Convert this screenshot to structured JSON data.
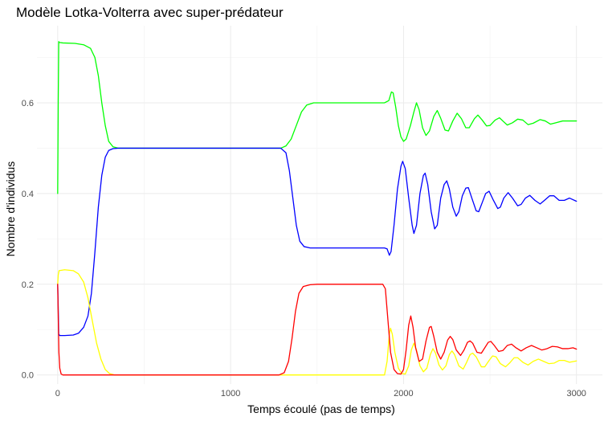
{
  "chart_data": {
    "type": "line",
    "title": "Modèle Lotka-Volterra avec super-prédateur",
    "xlabel": "Temps écoulé (pas de temps)",
    "ylabel": "Nombre d'individus",
    "xlim": [
      -120,
      3150
    ],
    "ylim": [
      -0.02,
      0.77
    ],
    "grid": true,
    "legend": "none",
    "x_ticks": [
      0,
      1000,
      2000,
      3000
    ],
    "x_tick_labels": [
      "0",
      "1000",
      "2000",
      "3000"
    ],
    "x_minor_ticks": [
      500,
      1500,
      2500
    ],
    "y_ticks": [
      0.0,
      0.2,
      0.4,
      0.6
    ],
    "y_tick_labels": [
      "0.0",
      "0.2",
      "0.4",
      "0.6"
    ],
    "y_minor_ticks": [
      0.1,
      0.3,
      0.5,
      0.7
    ],
    "series": [
      {
        "color": "#00ff00",
        "points": [
          [
            0,
            0.4
          ],
          [
            3,
            0.6
          ],
          [
            6,
            0.735
          ],
          [
            10,
            0.733
          ],
          [
            30,
            0.732
          ],
          [
            100,
            0.731
          ],
          [
            150,
            0.728
          ],
          [
            190,
            0.72
          ],
          [
            215,
            0.7
          ],
          [
            235,
            0.66
          ],
          [
            255,
            0.6
          ],
          [
            275,
            0.55
          ],
          [
            295,
            0.515
          ],
          [
            320,
            0.503
          ],
          [
            350,
            0.5
          ],
          [
            500,
            0.5
          ],
          [
            1000,
            0.5
          ],
          [
            1290,
            0.5
          ],
          [
            1320,
            0.505
          ],
          [
            1350,
            0.52
          ],
          [
            1380,
            0.55
          ],
          [
            1410,
            0.58
          ],
          [
            1440,
            0.595
          ],
          [
            1480,
            0.6
          ],
          [
            1600,
            0.6
          ],
          [
            1890,
            0.6
          ],
          [
            1915,
            0.605
          ],
          [
            1930,
            0.624
          ],
          [
            1940,
            0.622
          ],
          [
            1955,
            0.59
          ],
          [
            1970,
            0.55
          ],
          [
            1985,
            0.525
          ],
          [
            2000,
            0.515
          ],
          [
            2015,
            0.52
          ],
          [
            2040,
            0.55
          ],
          [
            2060,
            0.58
          ],
          [
            2075,
            0.6
          ],
          [
            2090,
            0.585
          ],
          [
            2110,
            0.545
          ],
          [
            2130,
            0.528
          ],
          [
            2150,
            0.538
          ],
          [
            2175,
            0.57
          ],
          [
            2195,
            0.583
          ],
          [
            2215,
            0.566
          ],
          [
            2240,
            0.54
          ],
          [
            2260,
            0.538
          ],
          [
            2285,
            0.56
          ],
          [
            2310,
            0.577
          ],
          [
            2335,
            0.565
          ],
          [
            2360,
            0.545
          ],
          [
            2380,
            0.545
          ],
          [
            2410,
            0.565
          ],
          [
            2430,
            0.573
          ],
          [
            2455,
            0.562
          ],
          [
            2480,
            0.549
          ],
          [
            2500,
            0.55
          ],
          [
            2530,
            0.562
          ],
          [
            2555,
            0.567
          ],
          [
            2580,
            0.558
          ],
          [
            2600,
            0.551
          ],
          [
            2630,
            0.556
          ],
          [
            2660,
            0.564
          ],
          [
            2690,
            0.562
          ],
          [
            2720,
            0.552
          ],
          [
            2750,
            0.555
          ],
          [
            2790,
            0.563
          ],
          [
            2820,
            0.56
          ],
          [
            2850,
            0.553
          ],
          [
            2880,
            0.556
          ],
          [
            2920,
            0.56
          ],
          [
            2960,
            0.56
          ],
          [
            3000,
            0.56
          ]
        ]
      },
      {
        "color": "#0000ff",
        "points": [
          [
            0,
            0.2
          ],
          [
            3,
            0.15
          ],
          [
            6,
            0.09
          ],
          [
            12,
            0.087
          ],
          [
            40,
            0.087
          ],
          [
            90,
            0.088
          ],
          [
            120,
            0.092
          ],
          [
            150,
            0.105
          ],
          [
            175,
            0.13
          ],
          [
            195,
            0.18
          ],
          [
            215,
            0.27
          ],
          [
            235,
            0.37
          ],
          [
            255,
            0.44
          ],
          [
            275,
            0.48
          ],
          [
            295,
            0.495
          ],
          [
            320,
            0.499
          ],
          [
            350,
            0.5
          ],
          [
            500,
            0.5
          ],
          [
            1000,
            0.5
          ],
          [
            1290,
            0.5
          ],
          [
            1320,
            0.49
          ],
          [
            1340,
            0.45
          ],
          [
            1360,
            0.39
          ],
          [
            1380,
            0.33
          ],
          [
            1400,
            0.295
          ],
          [
            1425,
            0.283
          ],
          [
            1460,
            0.28
          ],
          [
            1600,
            0.28
          ],
          [
            1890,
            0.28
          ],
          [
            1905,
            0.278
          ],
          [
            1918,
            0.264
          ],
          [
            1928,
            0.272
          ],
          [
            1945,
            0.33
          ],
          [
            1965,
            0.41
          ],
          [
            1985,
            0.46
          ],
          [
            1995,
            0.471
          ],
          [
            2010,
            0.455
          ],
          [
            2030,
            0.39
          ],
          [
            2050,
            0.33
          ],
          [
            2060,
            0.312
          ],
          [
            2075,
            0.33
          ],
          [
            2095,
            0.4
          ],
          [
            2115,
            0.44
          ],
          [
            2125,
            0.445
          ],
          [
            2140,
            0.42
          ],
          [
            2160,
            0.36
          ],
          [
            2180,
            0.322
          ],
          [
            2195,
            0.33
          ],
          [
            2215,
            0.39
          ],
          [
            2235,
            0.42
          ],
          [
            2250,
            0.428
          ],
          [
            2265,
            0.41
          ],
          [
            2285,
            0.37
          ],
          [
            2305,
            0.35
          ],
          [
            2320,
            0.36
          ],
          [
            2340,
            0.395
          ],
          [
            2360,
            0.412
          ],
          [
            2375,
            0.413
          ],
          [
            2395,
            0.39
          ],
          [
            2420,
            0.362
          ],
          [
            2435,
            0.36
          ],
          [
            2455,
            0.38
          ],
          [
            2475,
            0.4
          ],
          [
            2495,
            0.405
          ],
          [
            2520,
            0.385
          ],
          [
            2545,
            0.367
          ],
          [
            2560,
            0.37
          ],
          [
            2580,
            0.39
          ],
          [
            2605,
            0.402
          ],
          [
            2630,
            0.39
          ],
          [
            2660,
            0.373
          ],
          [
            2680,
            0.376
          ],
          [
            2705,
            0.39
          ],
          [
            2730,
            0.396
          ],
          [
            2760,
            0.385
          ],
          [
            2790,
            0.377
          ],
          [
            2815,
            0.385
          ],
          [
            2845,
            0.395
          ],
          [
            2870,
            0.395
          ],
          [
            2900,
            0.385
          ],
          [
            2930,
            0.385
          ],
          [
            2960,
            0.39
          ],
          [
            3000,
            0.383
          ]
        ]
      },
      {
        "color": "#ffff00",
        "points": [
          [
            0,
            0.2
          ],
          [
            3,
            0.22
          ],
          [
            8,
            0.23
          ],
          [
            40,
            0.232
          ],
          [
            90,
            0.23
          ],
          [
            120,
            0.223
          ],
          [
            150,
            0.205
          ],
          [
            175,
            0.17
          ],
          [
            200,
            0.12
          ],
          [
            225,
            0.07
          ],
          [
            250,
            0.035
          ],
          [
            275,
            0.012
          ],
          [
            300,
            0.003
          ],
          [
            330,
            0.0
          ],
          [
            500,
            0.0
          ],
          [
            1000,
            0.0
          ],
          [
            1500,
            0.0
          ],
          [
            1890,
            0.0
          ],
          [
            1905,
            0.03
          ],
          [
            1918,
            0.09
          ],
          [
            1925,
            0.103
          ],
          [
            1935,
            0.09
          ],
          [
            1950,
            0.05
          ],
          [
            1970,
            0.015
          ],
          [
            1990,
            0.003
          ],
          [
            2010,
            0.002
          ],
          [
            2030,
            0.02
          ],
          [
            2045,
            0.055
          ],
          [
            2060,
            0.07
          ],
          [
            2075,
            0.055
          ],
          [
            2095,
            0.02
          ],
          [
            2115,
            0.007
          ],
          [
            2135,
            0.015
          ],
          [
            2155,
            0.045
          ],
          [
            2170,
            0.058
          ],
          [
            2185,
            0.048
          ],
          [
            2205,
            0.022
          ],
          [
            2225,
            0.011
          ],
          [
            2245,
            0.02
          ],
          [
            2265,
            0.045
          ],
          [
            2280,
            0.053
          ],
          [
            2295,
            0.045
          ],
          [
            2320,
            0.02
          ],
          [
            2345,
            0.013
          ],
          [
            2365,
            0.028
          ],
          [
            2385,
            0.045
          ],
          [
            2400,
            0.048
          ],
          [
            2420,
            0.04
          ],
          [
            2450,
            0.018
          ],
          [
            2470,
            0.018
          ],
          [
            2495,
            0.032
          ],
          [
            2515,
            0.042
          ],
          [
            2535,
            0.04
          ],
          [
            2560,
            0.025
          ],
          [
            2590,
            0.018
          ],
          [
            2615,
            0.027
          ],
          [
            2640,
            0.038
          ],
          [
            2660,
            0.038
          ],
          [
            2690,
            0.028
          ],
          [
            2720,
            0.022
          ],
          [
            2750,
            0.03
          ],
          [
            2780,
            0.035
          ],
          [
            2810,
            0.03
          ],
          [
            2840,
            0.025
          ],
          [
            2870,
            0.026
          ],
          [
            2900,
            0.032
          ],
          [
            2930,
            0.032
          ],
          [
            2960,
            0.028
          ],
          [
            3000,
            0.031
          ]
        ]
      },
      {
        "color": "#ff0000",
        "points": [
          [
            0,
            0.2
          ],
          [
            3,
            0.13
          ],
          [
            7,
            0.05
          ],
          [
            12,
            0.015
          ],
          [
            20,
            0.002
          ],
          [
            30,
            0.0
          ],
          [
            500,
            0.0
          ],
          [
            1000,
            0.0
          ],
          [
            1280,
            0.0
          ],
          [
            1310,
            0.005
          ],
          [
            1335,
            0.03
          ],
          [
            1355,
            0.08
          ],
          [
            1375,
            0.14
          ],
          [
            1395,
            0.18
          ],
          [
            1420,
            0.195
          ],
          [
            1460,
            0.199
          ],
          [
            1500,
            0.2
          ],
          [
            1880,
            0.2
          ],
          [
            1895,
            0.19
          ],
          [
            1910,
            0.12
          ],
          [
            1925,
            0.05
          ],
          [
            1945,
            0.012
          ],
          [
            1965,
            0.003
          ],
          [
            1985,
            0.002
          ],
          [
            2000,
            0.012
          ],
          [
            2015,
            0.055
          ],
          [
            2030,
            0.11
          ],
          [
            2042,
            0.13
          ],
          [
            2055,
            0.105
          ],
          [
            2070,
            0.06
          ],
          [
            2090,
            0.03
          ],
          [
            2110,
            0.035
          ],
          [
            2130,
            0.075
          ],
          [
            2150,
            0.105
          ],
          [
            2160,
            0.107
          ],
          [
            2175,
            0.085
          ],
          [
            2195,
            0.05
          ],
          [
            2215,
            0.035
          ],
          [
            2235,
            0.05
          ],
          [
            2255,
            0.077
          ],
          [
            2270,
            0.085
          ],
          [
            2285,
            0.078
          ],
          [
            2305,
            0.055
          ],
          [
            2330,
            0.043
          ],
          [
            2350,
            0.055
          ],
          [
            2370,
            0.072
          ],
          [
            2385,
            0.075
          ],
          [
            2400,
            0.07
          ],
          [
            2425,
            0.05
          ],
          [
            2450,
            0.048
          ],
          [
            2470,
            0.06
          ],
          [
            2490,
            0.072
          ],
          [
            2505,
            0.074
          ],
          [
            2525,
            0.065
          ],
          [
            2550,
            0.052
          ],
          [
            2575,
            0.054
          ],
          [
            2600,
            0.065
          ],
          [
            2625,
            0.068
          ],
          [
            2650,
            0.06
          ],
          [
            2680,
            0.053
          ],
          [
            2710,
            0.06
          ],
          [
            2740,
            0.065
          ],
          [
            2770,
            0.06
          ],
          [
            2800,
            0.055
          ],
          [
            2830,
            0.058
          ],
          [
            2860,
            0.063
          ],
          [
            2890,
            0.062
          ],
          [
            2920,
            0.058
          ],
          [
            2950,
            0.058
          ],
          [
            2980,
            0.06
          ],
          [
            3000,
            0.057
          ]
        ]
      }
    ]
  }
}
